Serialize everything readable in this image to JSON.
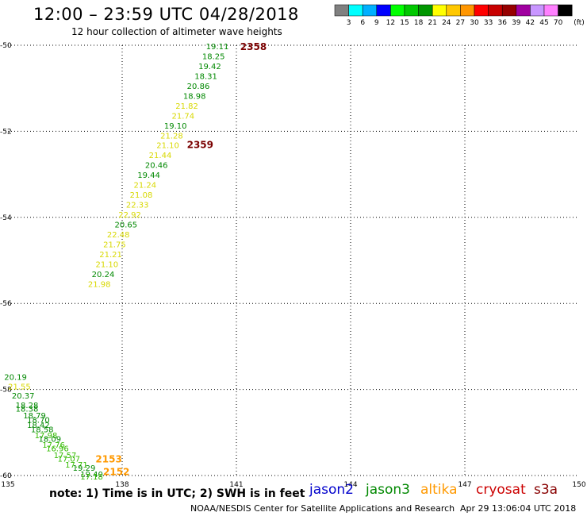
{
  "header": {
    "title": "12:00 – 23:59 UTC 04/28/2018",
    "subtitle": "12 hour collection of altimeter wave heights"
  },
  "legend_scale": {
    "colors": [
      "#808080",
      "#00ffff",
      "#00b0ff",
      "#0000ff",
      "#00ff00",
      "#00c800",
      "#009600",
      "#ffff00",
      "#ffc800",
      "#ff9600",
      "#ff0000",
      "#c80000",
      "#960000",
      "#a000a0",
      "#c896ff",
      "#ff80ff",
      "#000000"
    ],
    "labels": [
      "3",
      "6",
      "9",
      "12",
      "15",
      "18",
      "21",
      "24",
      "27",
      "30",
      "33",
      "36",
      "39",
      "42",
      "45",
      "70"
    ],
    "unit": "(ft)"
  },
  "footer": {
    "note": "note:  1) Time is in UTC;  2) SWH is in feet",
    "satellites": [
      {
        "name": "jason2",
        "color": "#0000cc"
      },
      {
        "name": "jason3",
        "color": "#008800"
      },
      {
        "name": "altika",
        "color": "#ff9900"
      },
      {
        "name": "cryosat",
        "color": "#cc0000"
      },
      {
        "name": "s3a",
        "color": "#880000"
      }
    ],
    "credit": "NOAA/NESDIS Center for Satellite Applications and Research",
    "timestamp": "Apr 29 13:06:04 UTC 2018"
  },
  "chart_data": {
    "type": "scatter",
    "xlim": [
      135,
      150
    ],
    "ylim": [
      -60,
      -50
    ],
    "x_ticks": [
      "135",
      "138",
      "141",
      "144",
      "147",
      "150"
    ],
    "y_ticks": [
      "-50",
      "-52",
      "-54",
      "-56",
      "-58",
      "-60"
    ],
    "grid": true,
    "time_labels": [
      {
        "text": "2358",
        "x": 141.1,
        "y": -50.02,
        "color": "#7a0000"
      },
      {
        "text": "2359",
        "x": 139.7,
        "y": -52.3,
        "color": "#7a0000"
      },
      {
        "text": "2153",
        "x": 137.3,
        "y": -59.6,
        "color": "#ff9900"
      },
      {
        "text": "2152",
        "x": 137.5,
        "y": -59.9,
        "color": "#ff9900"
      }
    ],
    "points": [
      {
        "label": "19.11",
        "x": 140.5,
        "y": -50.02,
        "color": "#008800"
      },
      {
        "label": "18.25",
        "x": 140.4,
        "y": -50.25,
        "color": "#008800"
      },
      {
        "label": "19.42",
        "x": 140.3,
        "y": -50.48,
        "color": "#008800"
      },
      {
        "label": "18.31",
        "x": 140.2,
        "y": -50.71,
        "color": "#008800"
      },
      {
        "label": "20.86",
        "x": 140.0,
        "y": -50.94,
        "color": "#008800"
      },
      {
        "label": "18.98",
        "x": 139.9,
        "y": -51.17,
        "color": "#008800"
      },
      {
        "label": "21.82",
        "x": 139.7,
        "y": -51.4,
        "color": "#d8d800"
      },
      {
        "label": "21.74",
        "x": 139.6,
        "y": -51.63,
        "color": "#d8d800"
      },
      {
        "label": "19.10",
        "x": 139.4,
        "y": -51.86,
        "color": "#008800"
      },
      {
        "label": "21.28",
        "x": 139.3,
        "y": -52.09,
        "color": "#d8d800"
      },
      {
        "label": "21.10",
        "x": 139.2,
        "y": -52.32,
        "color": "#d8d800"
      },
      {
        "label": "21.44",
        "x": 139.0,
        "y": -52.55,
        "color": "#d8d800"
      },
      {
        "label": "20.46",
        "x": 138.9,
        "y": -52.78,
        "color": "#008800"
      },
      {
        "label": "19.44",
        "x": 138.7,
        "y": -53.01,
        "color": "#008800"
      },
      {
        "label": "21.24",
        "x": 138.6,
        "y": -53.24,
        "color": "#d8d800"
      },
      {
        "label": "21.08",
        "x": 138.5,
        "y": -53.47,
        "color": "#d8d800"
      },
      {
        "label": "22.33",
        "x": 138.4,
        "y": -53.7,
        "color": "#d8d800"
      },
      {
        "label": "22.92",
        "x": 138.2,
        "y": -53.93,
        "color": "#d8d800"
      },
      {
        "label": "20.65",
        "x": 138.1,
        "y": -54.16,
        "color": "#008800"
      },
      {
        "label": "22.48",
        "x": 137.9,
        "y": -54.39,
        "color": "#d8d800"
      },
      {
        "label": "21.75",
        "x": 137.8,
        "y": -54.62,
        "color": "#d8d800"
      },
      {
        "label": "21.21",
        "x": 137.7,
        "y": -54.85,
        "color": "#d8d800"
      },
      {
        "label": "21.10",
        "x": 137.6,
        "y": -55.08,
        "color": "#d8d800"
      },
      {
        "label": "20.24",
        "x": 137.5,
        "y": -55.31,
        "color": "#008800"
      },
      {
        "label": "21.98",
        "x": 137.4,
        "y": -55.54,
        "color": "#d8d800"
      },
      {
        "label": "20.19",
        "x": 135.2,
        "y": -57.7,
        "color": "#008800"
      },
      {
        "label": "21.55",
        "x": 135.3,
        "y": -57.92,
        "color": "#d8d800"
      },
      {
        "label": "20.37",
        "x": 135.4,
        "y": -58.14,
        "color": "#008800"
      },
      {
        "label": "18.28",
        "x": 135.5,
        "y": -58.36,
        "color": "#008800"
      },
      {
        "label": "18.38",
        "x": 135.5,
        "y": -58.44,
        "color": "#008800"
      },
      {
        "label": "18.79",
        "x": 135.7,
        "y": -58.6,
        "color": "#008800"
      },
      {
        "label": "18.70",
        "x": 135.8,
        "y": -58.7,
        "color": "#008800"
      },
      {
        "label": "18.42",
        "x": 135.8,
        "y": -58.82,
        "color": "#008800"
      },
      {
        "label": "18.58",
        "x": 135.9,
        "y": -58.92,
        "color": "#008800"
      },
      {
        "label": "17.98",
        "x": 136.0,
        "y": -59.06,
        "color": "#33bb00"
      },
      {
        "label": "18.09",
        "x": 136.1,
        "y": -59.14,
        "color": "#008800"
      },
      {
        "label": "17.76",
        "x": 136.2,
        "y": -59.28,
        "color": "#33bb00"
      },
      {
        "label": "16.96",
        "x": 136.3,
        "y": -59.36,
        "color": "#33bb00"
      },
      {
        "label": "17.57",
        "x": 136.5,
        "y": -59.52,
        "color": "#33bb00"
      },
      {
        "label": "17.07",
        "x": 136.6,
        "y": -59.6,
        "color": "#33bb00"
      },
      {
        "label": "17.71",
        "x": 136.8,
        "y": -59.74,
        "color": "#33bb00"
      },
      {
        "label": "19.29",
        "x": 137.0,
        "y": -59.82,
        "color": "#008800"
      },
      {
        "label": "19.40",
        "x": 137.2,
        "y": -59.96,
        "color": "#008800"
      },
      {
        "label": "17.18",
        "x": 137.2,
        "y": -60.02,
        "color": "#33bb00"
      }
    ]
  }
}
